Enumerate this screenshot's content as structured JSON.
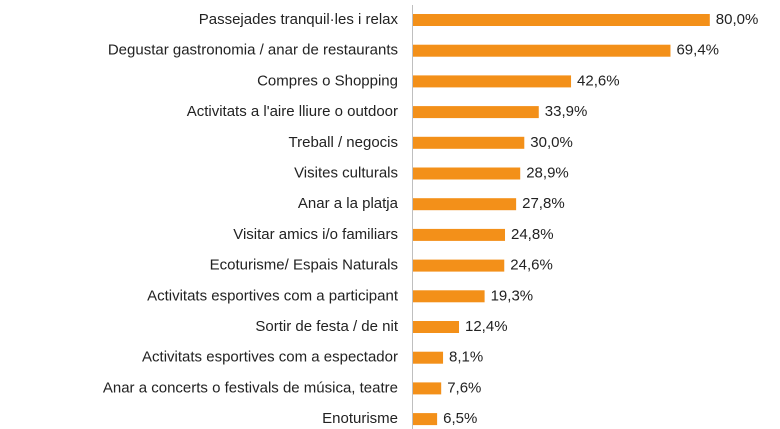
{
  "chart_data": {
    "type": "barh",
    "categories": [
      "Passejades tranquil·les i relax",
      "Degustar gastronomia / anar de restaurants",
      "Compres o Shopping",
      "Activitats a l'aire lliure o outdoor",
      "Treball / negocis",
      "Visites culturals",
      "Anar a la platja",
      "Visitar amics i/o familiars",
      "Ecoturisme/ Espais Naturals",
      "Activitats esportives com a participant",
      "Sortir de festa / de nit",
      "Activitats esportives com a espectador",
      "Anar a concerts o festivals de música, teatre",
      "Enoturisme"
    ],
    "values": [
      80.0,
      69.4,
      42.6,
      33.9,
      30.0,
      28.9,
      27.8,
      24.8,
      24.6,
      19.3,
      12.4,
      8.1,
      7.6,
      6.5
    ],
    "value_labels": [
      "80,0%",
      "69,4%",
      "42,6%",
      "33,9%",
      "30,0%",
      "28,9%",
      "27,8%",
      "24,8%",
      "24,6%",
      "19,3%",
      "12,4%",
      "8,1%",
      "7,6%",
      "6,5%"
    ],
    "color": "#f39019"
  }
}
